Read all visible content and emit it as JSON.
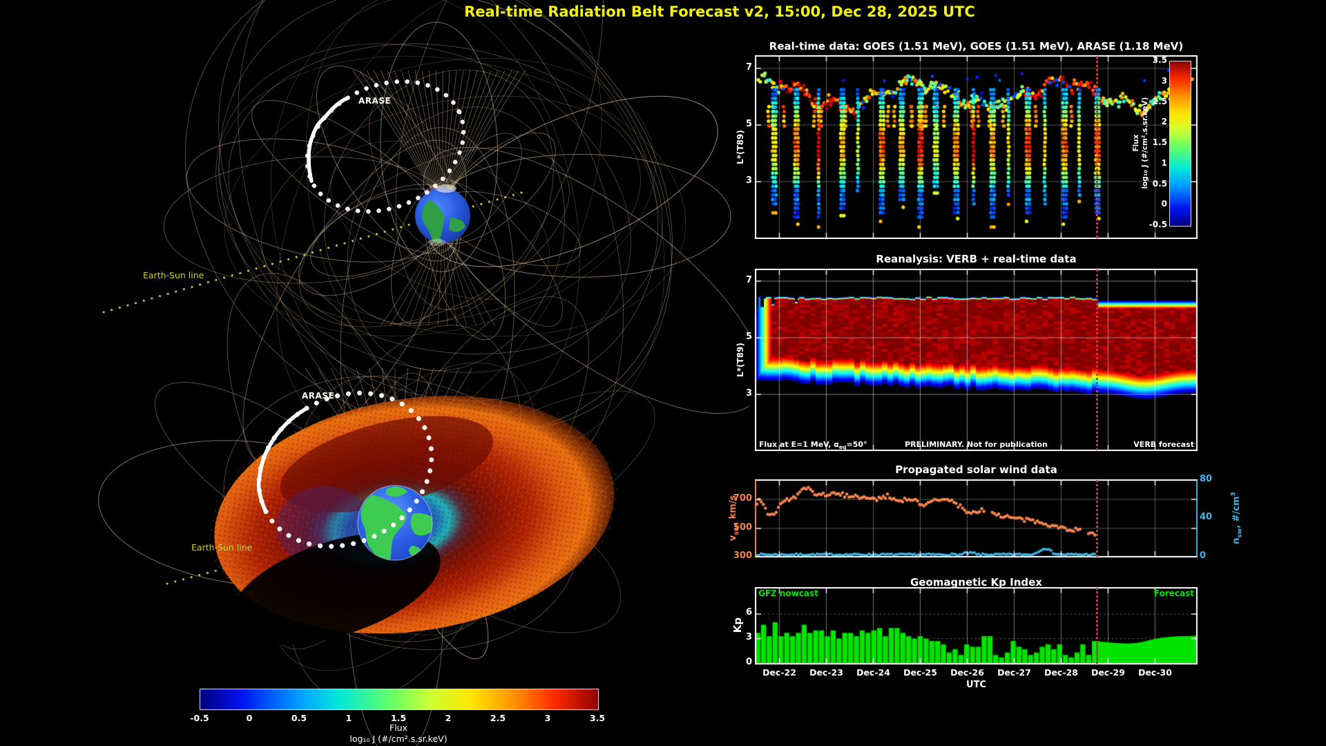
{
  "page_title": "Real-time Radiation Belt Forecast v2, 15:00, Dec 28, 2025 UTC",
  "colors": {
    "title_yellow": "#f2f20d",
    "kp_green": "#00e400",
    "vsw_orange": "#f4854f",
    "nsw_blue": "#41b6e8",
    "now_line_red": "#e03030",
    "sun_line_yellow": "#c9cf3e",
    "field_line_tan": "#dcc09c"
  },
  "scene": {
    "top": {
      "satellite": "ARASE",
      "sun_line": "Earth-Sun line"
    },
    "bottom": {
      "satellite": "ARASE",
      "sun_line": "Earth-Sun line"
    },
    "colorbar": {
      "ticks": [
        "-0.5",
        "0",
        "0.5",
        "1",
        "1.5",
        "2",
        "2.5",
        "3",
        "3.5"
      ],
      "title": "Flux",
      "units": "log₁₀ J (#/cm².s.sr.keV)"
    }
  },
  "panels": {
    "realtime": {
      "title": "Real-time data: GOES (1.51 MeV), GOES (1.51 MeV), ARASE (1.18 MeV)",
      "ylabel": "L*(T89)",
      "yticks": [
        "7",
        "5",
        "3"
      ],
      "colorbar": {
        "ticks": [
          "3.5",
          "3",
          "2.5",
          "2",
          "1.5",
          "1",
          "0.5",
          "0",
          "-0.5"
        ],
        "title": "Flux",
        "units": "log₁₀ J (#/cm².s.sr.keV)"
      }
    },
    "reanalysis": {
      "title": "Reanalysis: VERB + real-time data",
      "ylabel": "L*(T89)",
      "yticks": [
        "7",
        "5",
        "3"
      ],
      "note_left": {
        "pre": "Flux at E=1 MeV, ",
        "sym": "α",
        "sub": "eq",
        "post": "=50°"
      },
      "note_center": "PRELIMINARY. Not for publication",
      "note_right": "VERB forecast"
    },
    "solarwind": {
      "title": "Propagated solar wind data",
      "left_label": {
        "main": "v",
        "sub": "sw",
        "rest": ", km/s"
      },
      "left_ticks": [
        "700",
        "500",
        "300"
      ],
      "right_label": {
        "main": "n",
        "sub": "sw",
        "rest": ", #/cm",
        "sup": "3"
      },
      "right_ticks": [
        "80",
        "40",
        "0"
      ]
    },
    "kp": {
      "title": "Geomagnetic Kp Index",
      "ylabel": "Kp",
      "yticks": [
        "6",
        "3",
        "0"
      ],
      "nowcast_label": "GFZ nowcast",
      "forecast_label": "Forecast",
      "xlabel": "UTC",
      "xticks": [
        "Dec-22",
        "Dec-23",
        "Dec-24",
        "Dec-25",
        "Dec-26",
        "Dec-27",
        "Dec-28",
        "Dec-29",
        "Dec-30"
      ]
    }
  },
  "chart_data": [
    {
      "id": "realtime_flux",
      "type": "scatter",
      "title": "Real-time data: GOES (1.51 MeV), GOES (1.51 MeV), ARASE (1.18 MeV)",
      "ylabel": "L*(T89)",
      "ylim": [
        1.0,
        7.5
      ],
      "yticks": [
        7,
        5,
        3
      ],
      "x_axis": "time from ~Dec-21 12:00 to ~Dec-30 22:00 UTC (no tick labels shown)",
      "now_line_frac": 0.774,
      "colorbar": {
        "label": "Flux log10 J (#/cm2.s.sr.keV)",
        "range": [
          -0.5,
          3.5
        ]
      },
      "goes_band": {
        "L_center": 6.1,
        "L_wobble": 0.4,
        "flux_log10_range": [
          0.8,
          2.6
        ]
      },
      "arase_passes": [
        {
          "x_frac": 0.044,
          "L_min": 2.1,
          "peak_flux": 2.1
        },
        {
          "x_frac": 0.094,
          "L_min": 1.7,
          "peak_flux": 2.6
        },
        {
          "x_frac": 0.147,
          "L_min": 1.6,
          "peak_flux": 3.1
        },
        {
          "x_frac": 0.198,
          "L_min": 2.0,
          "peak_flux": 2.3
        },
        {
          "x_frac": 0.236,
          "L_min": 2.6,
          "peak_flux": 1.8
        },
        {
          "x_frac": 0.287,
          "L_min": 1.8,
          "peak_flux": 2.7
        },
        {
          "x_frac": 0.332,
          "L_min": 2.3,
          "peak_flux": 2.2
        },
        {
          "x_frac": 0.374,
          "L_min": 1.6,
          "peak_flux": 3.0
        },
        {
          "x_frac": 0.409,
          "L_min": 2.8,
          "peak_flux": 1.9
        },
        {
          "x_frac": 0.455,
          "L_min": 1.9,
          "peak_flux": 2.5
        },
        {
          "x_frac": 0.497,
          "L_min": 2.2,
          "peak_flux": 3.2
        },
        {
          "x_frac": 0.537,
          "L_min": 1.6,
          "peak_flux": 2.4
        },
        {
          "x_frac": 0.576,
          "L_min": 2.4,
          "peak_flux": 2.0
        },
        {
          "x_frac": 0.617,
          "L_min": 1.8,
          "peak_flux": 2.8
        },
        {
          "x_frac": 0.658,
          "L_min": 2.1,
          "peak_flux": 2.3
        },
        {
          "x_frac": 0.7,
          "L_min": 1.7,
          "peak_flux": 2.6
        },
        {
          "x_frac": 0.736,
          "L_min": 2.5,
          "peak_flux": 2.1
        },
        {
          "x_frac": 0.774,
          "L_min": 1.9,
          "peak_flux": 2.7
        }
      ],
      "high_L_dots": {
        "count": 12,
        "L_range": [
          6.5,
          7.0
        ],
        "flux_log10": 0.2
      }
    },
    {
      "id": "verb_reanalysis",
      "type": "heatmap",
      "title": "Reanalysis: VERB + real-time data",
      "ylabel": "L*(T89)",
      "ylim": [
        1.0,
        7.5
      ],
      "yticks": [
        7,
        5,
        3
      ],
      "flux_at": "E=1 MeV, α_eq=50°",
      "flux_log10_range": [
        -0.5,
        3.5
      ],
      "now_line_frac": 0.774,
      "belt": {
        "top_edge_L": 6.45,
        "top_edge_L_forecast": 6.33,
        "bottom_edge_L_start": 3.5,
        "bottom_edge_L_at_now": 3.07,
        "bottom_edge_L_forecast_dip": 2.85,
        "core_flux_log10": 3.45,
        "core_L_range": [
          3.9,
          6.0
        ]
      }
    },
    {
      "id": "solar_wind",
      "type": "scatter",
      "title": "Propagated solar wind data",
      "now_line_frac": 0.774,
      "series": [
        {
          "name": "v_sw",
          "units": "km/s",
          "color": "#f4854f",
          "axis_ticks": [
            700,
            500,
            300
          ],
          "trend_frac_value": [
            [
              0,
              650
            ],
            [
              0.016,
              700
            ],
            [
              0.036,
              600
            ],
            [
              0.056,
              580
            ],
            [
              0.08,
              690
            ],
            [
              0.11,
              700
            ],
            [
              0.14,
              760
            ],
            [
              0.157,
              778
            ],
            [
              0.18,
              730
            ],
            [
              0.24,
              737
            ],
            [
              0.3,
              722
            ],
            [
              0.35,
              700
            ],
            [
              0.387,
              724
            ],
            [
              0.42,
              700
            ],
            [
              0.474,
              690
            ],
            [
              0.5,
              655
            ],
            [
              0.53,
              700
            ],
            [
              0.575,
              690
            ],
            [
              0.605,
              645
            ],
            [
              0.635,
              600
            ],
            [
              0.665,
              630
            ],
            [
              0.695,
              605
            ],
            [
              0.726,
              585
            ],
            [
              0.766,
              565
            ],
            [
              0.806,
              550
            ],
            [
              0.847,
              540
            ],
            [
              0.887,
              505
            ],
            [
              0.917,
              495
            ],
            [
              0.947,
              485
            ],
            [
              0.977,
              470
            ],
            [
              1,
              465
            ]
          ]
        },
        {
          "name": "n_sw",
          "units": "#/cm3",
          "color": "#41b6e8",
          "axis_ticks": [
            80,
            40,
            0
          ],
          "typical_value": 2.5,
          "bump": {
            "x_frac": 0.85,
            "value": 8
          }
        }
      ]
    },
    {
      "id": "kp_index",
      "type": "bar",
      "title": "Geomagnetic Kp Index",
      "ylabel": "Kp",
      "ylim": [
        0,
        9
      ],
      "yticks": [
        0,
        3,
        6
      ],
      "bar_hours": 3,
      "xlabel": "UTC",
      "categories_days": [
        "Dec-22",
        "Dec-23",
        "Dec-24",
        "Dec-25",
        "Dec-26",
        "Dec-27",
        "Dec-28",
        "Dec-29",
        "Dec-30"
      ],
      "nowcast_values": [
        3.7,
        4.7,
        3.3,
        5.0,
        3.3,
        3.7,
        3.3,
        3.7,
        4.7,
        3.7,
        4.0,
        4.0,
        3.3,
        4.0,
        3.0,
        3.7,
        3.7,
        3.3,
        4.0,
        3.7,
        4.0,
        4.3,
        3.3,
        4.3,
        4.3,
        3.7,
        3.3,
        3.0,
        3.3,
        3.0,
        2.7,
        2.7,
        2.3,
        1.3,
        1.7,
        1.0,
        2.3,
        2.0,
        2.0,
        3.3,
        3.3,
        1.0,
        0.7,
        1.3,
        2.7,
        2.0,
        1.7,
        1.0,
        1.3,
        2.0,
        2.3,
        1.7,
        2.3,
        1.0,
        0.7,
        1.3,
        2.3,
        1.0,
        2.7
      ],
      "forecast_values": [
        2.7,
        2.62,
        2.55,
        2.5,
        2.45,
        2.42,
        2.4,
        2.42,
        2.48,
        2.58,
        2.72,
        2.88,
        3.0,
        3.1,
        3.18,
        3.24,
        3.28,
        3.3,
        3.3,
        3.32,
        3.35
      ]
    }
  ]
}
